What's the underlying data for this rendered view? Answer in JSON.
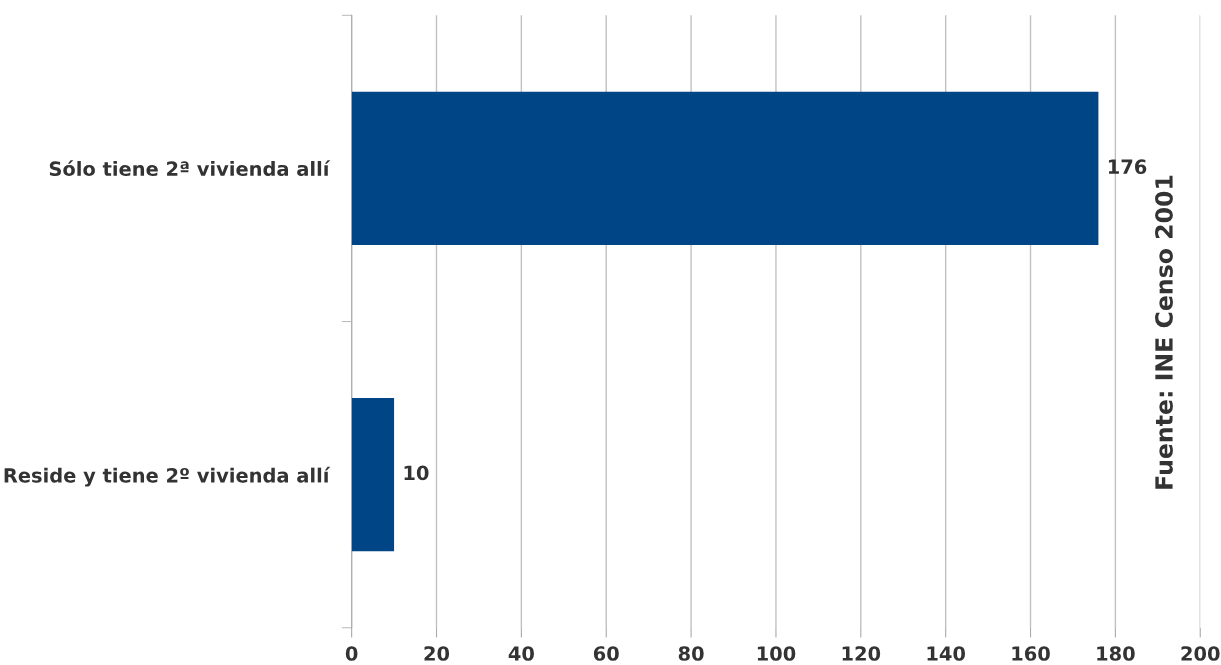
{
  "chart_data": {
    "type": "bar",
    "orientation": "horizontal",
    "categories": [
      "Sólo tiene 2ª vivienda allí",
      "Reside y tiene 2º vivienda allí"
    ],
    "values": [
      176,
      10
    ],
    "color": "#004585",
    "xlim": [
      0,
      200
    ],
    "xticks": [
      0,
      20,
      40,
      60,
      80,
      100,
      120,
      140,
      160,
      180,
      200
    ],
    "grid": "x",
    "data_labels": true,
    "legend": false,
    "annotations": [
      "Fuente: INE Censo 2001"
    ]
  }
}
